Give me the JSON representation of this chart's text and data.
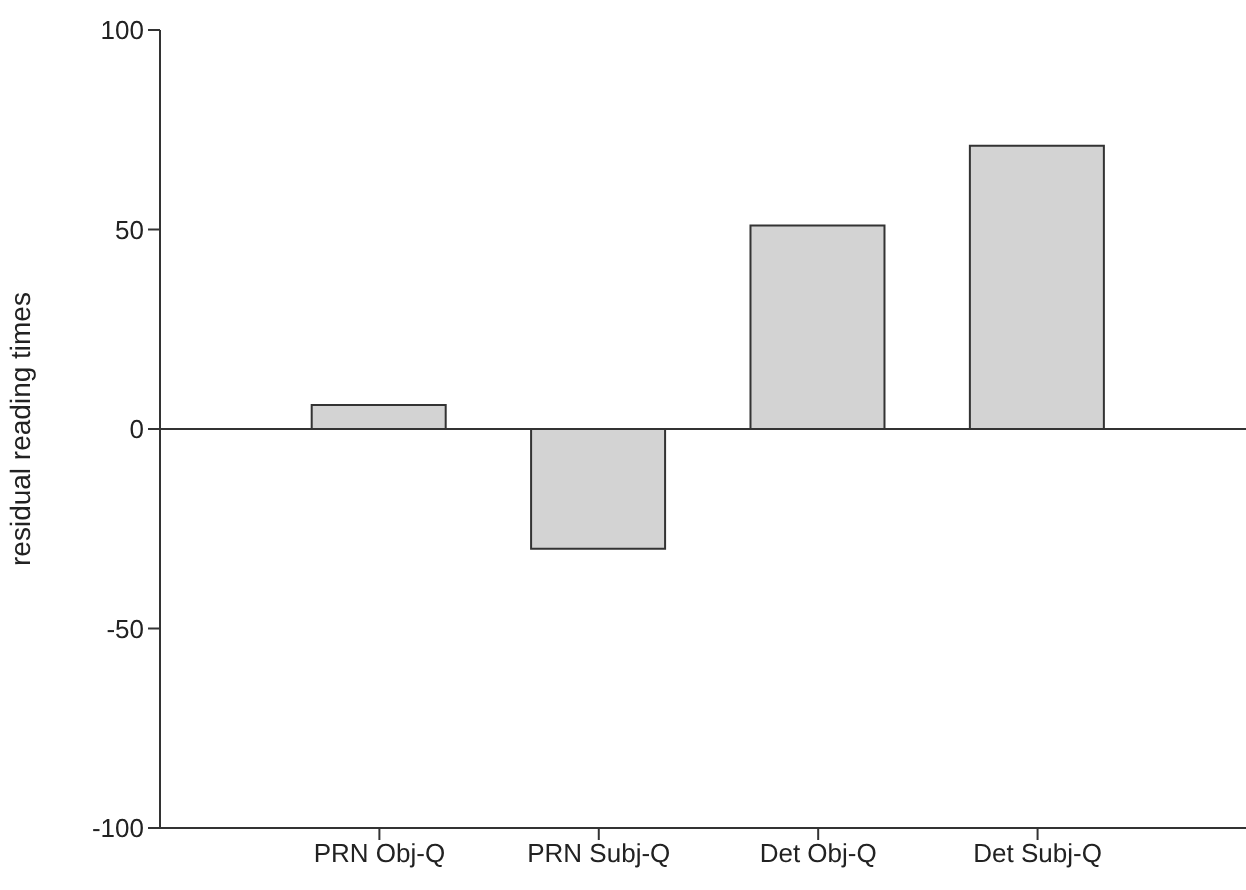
{
  "chart_data": {
    "type": "bar",
    "ylabel": "residual reading times",
    "categories": [
      "PRN Obj-Q",
      "PRN Subj-Q",
      "Det Obj-Q",
      "Det Subj-Q"
    ],
    "values": [
      6,
      -30,
      51,
      71
    ],
    "color": "#d3d3d3",
    "ylim": [
      -100,
      100
    ],
    "yticks": [
      -100,
      -50,
      0,
      50,
      100
    ]
  }
}
